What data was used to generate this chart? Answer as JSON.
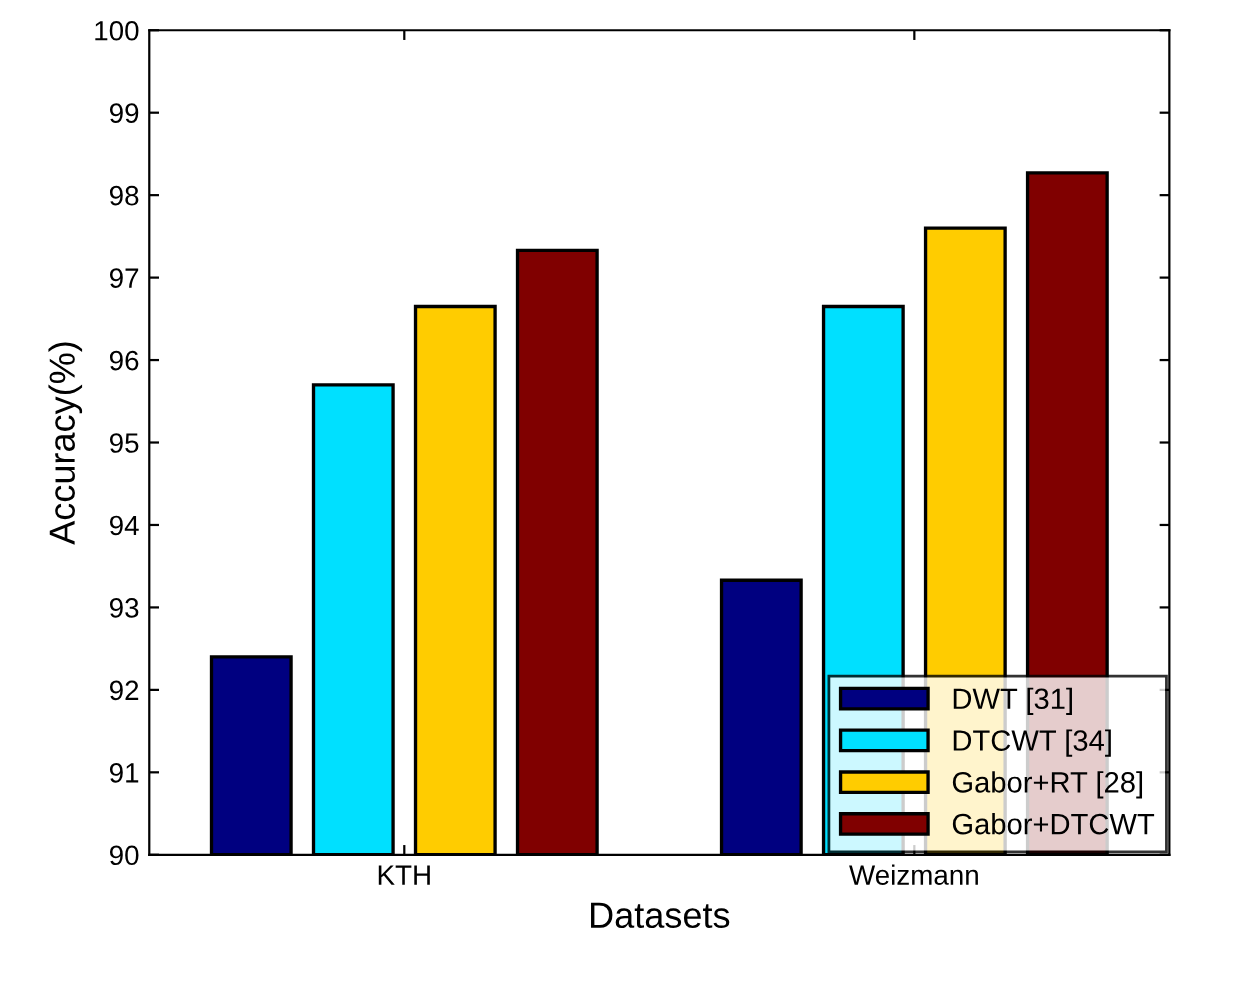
{
  "chart_data": {
    "type": "bar",
    "xlabel": "Datasets",
    "ylabel": "Accuracy(%)",
    "categories": [
      "KTH",
      "Weizmann"
    ],
    "series": [
      {
        "name": "DWT [31]",
        "color": "#000080",
        "values": [
          92.4,
          93.33
        ]
      },
      {
        "name": "DTCWT [34]",
        "color": "#00e0ff",
        "values": [
          95.7,
          96.65
        ]
      },
      {
        "name": "Gabor+RT [28]",
        "color": "#ffcc00",
        "values": [
          96.65,
          97.6
        ]
      },
      {
        "name": "Gabor+DTCWT",
        "color": "#800000",
        "values": [
          97.33,
          98.27
        ]
      }
    ],
    "ylim": [
      90,
      100
    ],
    "yticks": [
      90,
      91,
      92,
      93,
      94,
      95,
      96,
      97,
      98,
      99,
      100
    ],
    "grid": false,
    "legend": "bottom right"
  }
}
